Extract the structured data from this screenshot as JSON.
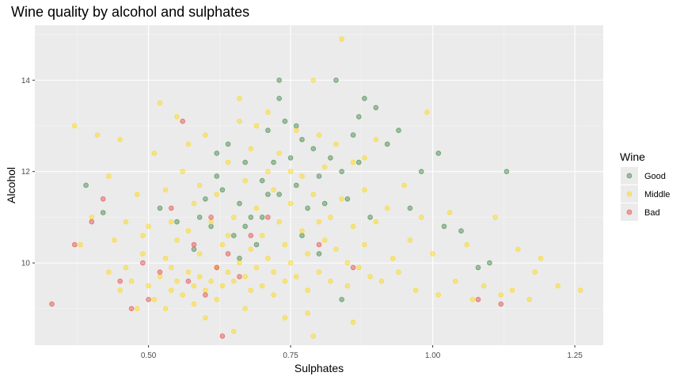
{
  "chart_data": {
    "type": "scatter",
    "title": "Wine quality by alcohol and sulphates",
    "xlabel": "Sulphates",
    "ylabel": "Alcohol",
    "xlim": [
      0.3,
      1.3
    ],
    "ylim": [
      8.2,
      15.2
    ],
    "x_ticks": [
      0.5,
      0.75,
      1.0,
      1.25
    ],
    "x_tick_labels": [
      "0.50",
      "0.75",
      "1.00",
      "1.25"
    ],
    "y_ticks": [
      10,
      12,
      14
    ],
    "y_tick_labels": [
      "10",
      "12",
      "14"
    ],
    "grid": true,
    "legend": {
      "title": "Wine",
      "placement": "right"
    },
    "series": [
      {
        "name": "Good",
        "color": "#2E7D32",
        "points": [
          [
            0.39,
            11.7
          ],
          [
            0.42,
            11.1
          ],
          [
            0.52,
            11.2
          ],
          [
            0.55,
            10.9
          ],
          [
            0.58,
            10.3
          ],
          [
            0.59,
            11.0
          ],
          [
            0.6,
            11.4
          ],
          [
            0.61,
            10.8
          ],
          [
            0.62,
            12.4
          ],
          [
            0.63,
            11.6
          ],
          [
            0.64,
            12.6
          ],
          [
            0.65,
            10.6
          ],
          [
            0.66,
            11.3
          ],
          [
            0.67,
            12.2
          ],
          [
            0.68,
            11.0
          ],
          [
            0.69,
            10.4
          ],
          [
            0.7,
            11.8
          ],
          [
            0.71,
            12.9
          ],
          [
            0.72,
            12.2
          ],
          [
            0.73,
            11.5
          ],
          [
            0.74,
            13.1
          ],
          [
            0.75,
            12.3
          ],
          [
            0.76,
            11.7
          ],
          [
            0.77,
            12.7
          ],
          [
            0.78,
            11.2
          ],
          [
            0.79,
            12.5
          ],
          [
            0.8,
            11.9
          ],
          [
            0.81,
            11.3
          ],
          [
            0.82,
            12.3
          ],
          [
            0.83,
            14.0
          ],
          [
            0.84,
            12.0
          ],
          [
            0.85,
            11.4
          ],
          [
            0.86,
            12.8
          ],
          [
            0.87,
            12.2
          ],
          [
            0.88,
            13.6
          ],
          [
            0.89,
            11.0
          ],
          [
            0.9,
            13.4
          ],
          [
            0.92,
            12.6
          ],
          [
            0.94,
            12.9
          ],
          [
            0.96,
            11.2
          ],
          [
            0.98,
            12.0
          ],
          [
            1.01,
            12.4
          ],
          [
            1.02,
            10.8
          ],
          [
            1.05,
            10.7
          ],
          [
            1.08,
            9.9
          ],
          [
            1.1,
            10.0
          ],
          [
            1.13,
            12.0
          ],
          [
            0.73,
            14.0
          ],
          [
            0.76,
            13.0
          ],
          [
            0.62,
            11.9
          ],
          [
            0.66,
            10.1
          ],
          [
            0.71,
            11.5
          ],
          [
            0.77,
            10.6
          ],
          [
            0.8,
            10.2
          ],
          [
            0.84,
            9.2
          ],
          [
            0.73,
            13.6
          ],
          [
            0.87,
            13.2
          ],
          [
            0.7,
            11.0
          ],
          [
            0.67,
            10.8
          ]
        ]
      },
      {
        "name": "Middle",
        "color": "#FFD700",
        "points": [
          [
            0.37,
            13.0
          ],
          [
            0.38,
            10.4
          ],
          [
            0.4,
            11.0
          ],
          [
            0.41,
            12.8
          ],
          [
            0.43,
            9.8
          ],
          [
            0.44,
            10.5
          ],
          [
            0.45,
            9.4
          ],
          [
            0.46,
            10.9
          ],
          [
            0.47,
            9.6
          ],
          [
            0.48,
            11.5
          ],
          [
            0.49,
            10.2
          ],
          [
            0.5,
            9.5
          ],
          [
            0.5,
            10.8
          ],
          [
            0.51,
            9.2
          ],
          [
            0.51,
            12.4
          ],
          [
            0.52,
            9.7
          ],
          [
            0.53,
            10.1
          ],
          [
            0.53,
            11.6
          ],
          [
            0.54,
            9.4
          ],
          [
            0.54,
            9.9
          ],
          [
            0.55,
            10.5
          ],
          [
            0.55,
            9.6
          ],
          [
            0.56,
            9.3
          ],
          [
            0.56,
            12.0
          ],
          [
            0.57,
            9.8
          ],
          [
            0.57,
            10.7
          ],
          [
            0.58,
            9.5
          ],
          [
            0.58,
            11.3
          ],
          [
            0.59,
            9.7
          ],
          [
            0.59,
            10.2
          ],
          [
            0.6,
            9.4
          ],
          [
            0.6,
            12.8
          ],
          [
            0.61,
            9.6
          ],
          [
            0.61,
            10.9
          ],
          [
            0.62,
            9.9
          ],
          [
            0.62,
            11.5
          ],
          [
            0.63,
            9.5
          ],
          [
            0.63,
            10.4
          ],
          [
            0.64,
            9.8
          ],
          [
            0.64,
            12.2
          ],
          [
            0.65,
            9.6
          ],
          [
            0.65,
            11.0
          ],
          [
            0.66,
            10.0
          ],
          [
            0.66,
            13.1
          ],
          [
            0.67,
            9.7
          ],
          [
            0.67,
            11.8
          ],
          [
            0.68,
            10.3
          ],
          [
            0.68,
            12.5
          ],
          [
            0.69,
            9.9
          ],
          [
            0.69,
            11.2
          ],
          [
            0.7,
            10.6
          ],
          [
            0.7,
            9.5
          ],
          [
            0.71,
            12.0
          ],
          [
            0.71,
            10.1
          ],
          [
            0.72,
            11.6
          ],
          [
            0.72,
            9.8
          ],
          [
            0.73,
            10.9
          ],
          [
            0.73,
            12.4
          ],
          [
            0.74,
            10.4
          ],
          [
            0.74,
            9.6
          ],
          [
            0.75,
            11.3
          ],
          [
            0.75,
            10.0
          ],
          [
            0.76,
            12.9
          ],
          [
            0.76,
            9.7
          ],
          [
            0.77,
            10.7
          ],
          [
            0.77,
            11.9
          ],
          [
            0.78,
            10.2
          ],
          [
            0.78,
            9.4
          ],
          [
            0.79,
            11.5
          ],
          [
            0.79,
            14.0
          ],
          [
            0.8,
            10.9
          ],
          [
            0.8,
            9.8
          ],
          [
            0.81,
            12.1
          ],
          [
            0.81,
            10.5
          ],
          [
            0.82,
            11.0
          ],
          [
            0.82,
            9.6
          ],
          [
            0.83,
            12.6
          ],
          [
            0.83,
            10.3
          ],
          [
            0.84,
            14.9
          ],
          [
            0.84,
            11.4
          ],
          [
            0.85,
            10.0
          ],
          [
            0.85,
            9.5
          ],
          [
            0.86,
            12.2
          ],
          [
            0.86,
            10.8
          ],
          [
            0.87,
            9.9
          ],
          [
            0.88,
            11.6
          ],
          [
            0.88,
            10.4
          ],
          [
            0.89,
            9.7
          ],
          [
            0.9,
            12.7
          ],
          [
            0.9,
            10.9
          ],
          [
            0.91,
            9.6
          ],
          [
            0.92,
            11.2
          ],
          [
            0.93,
            10.1
          ],
          [
            0.94,
            9.8
          ],
          [
            0.95,
            11.7
          ],
          [
            0.96,
            10.5
          ],
          [
            0.97,
            9.4
          ],
          [
            0.98,
            11.0
          ],
          [
            0.99,
            13.3
          ],
          [
            1.0,
            10.2
          ],
          [
            1.01,
            9.3
          ],
          [
            1.03,
            11.1
          ],
          [
            1.04,
            9.6
          ],
          [
            1.06,
            10.4
          ],
          [
            1.07,
            9.2
          ],
          [
            1.09,
            9.5
          ],
          [
            1.11,
            11.0
          ],
          [
            1.12,
            9.3
          ],
          [
            1.14,
            9.4
          ],
          [
            1.15,
            10.3
          ],
          [
            1.17,
            9.2
          ],
          [
            1.18,
            9.8
          ],
          [
            1.19,
            10.1
          ],
          [
            1.22,
            9.5
          ],
          [
            1.26,
            9.4
          ],
          [
            0.52,
            13.5
          ],
          [
            0.57,
            12.6
          ],
          [
            0.66,
            13.6
          ],
          [
            0.74,
            8.8
          ],
          [
            0.79,
            8.4
          ],
          [
            0.6,
            8.8
          ],
          [
            0.65,
            8.5
          ],
          [
            0.48,
            9.0
          ],
          [
            0.45,
            12.7
          ],
          [
            0.43,
            11.9
          ],
          [
            0.55,
            13.2
          ],
          [
            0.69,
            13.0
          ],
          [
            0.78,
            8.9
          ],
          [
            0.86,
            8.7
          ],
          [
            0.53,
            9.0
          ],
          [
            0.58,
            9.1
          ],
          [
            0.62,
            9.2
          ],
          [
            0.67,
            9.0
          ],
          [
            0.72,
            9.3
          ],
          [
            0.46,
            9.9
          ],
          [
            0.49,
            10.6
          ],
          [
            0.54,
            10.9
          ],
          [
            0.59,
            11.7
          ],
          [
            0.64,
            10.6
          ],
          [
            0.68,
            9.4
          ],
          [
            0.71,
            13.3
          ],
          [
            0.75,
            12.0
          ],
          [
            0.8,
            12.8
          ],
          [
            0.88,
            12.3
          ]
        ]
      },
      {
        "name": "Bad",
        "color": "#E53935",
        "points": [
          [
            0.33,
            9.1
          ],
          [
            0.37,
            10.4
          ],
          [
            0.4,
            10.9
          ],
          [
            0.42,
            11.4
          ],
          [
            0.45,
            9.6
          ],
          [
            0.47,
            9.0
          ],
          [
            0.49,
            10.0
          ],
          [
            0.5,
            9.2
          ],
          [
            0.52,
            9.8
          ],
          [
            0.54,
            11.2
          ],
          [
            0.56,
            13.1
          ],
          [
            0.57,
            9.6
          ],
          [
            0.58,
            10.4
          ],
          [
            0.6,
            9.3
          ],
          [
            0.61,
            11.0
          ],
          [
            0.62,
            9.9
          ],
          [
            0.63,
            8.4
          ],
          [
            0.64,
            10.2
          ],
          [
            0.66,
            9.7
          ],
          [
            0.68,
            10.6
          ],
          [
            0.71,
            11.0
          ],
          [
            0.8,
            10.4
          ],
          [
            0.86,
            9.9
          ],
          [
            1.08,
            9.2
          ],
          [
            1.12,
            9.1
          ]
        ]
      }
    ]
  }
}
